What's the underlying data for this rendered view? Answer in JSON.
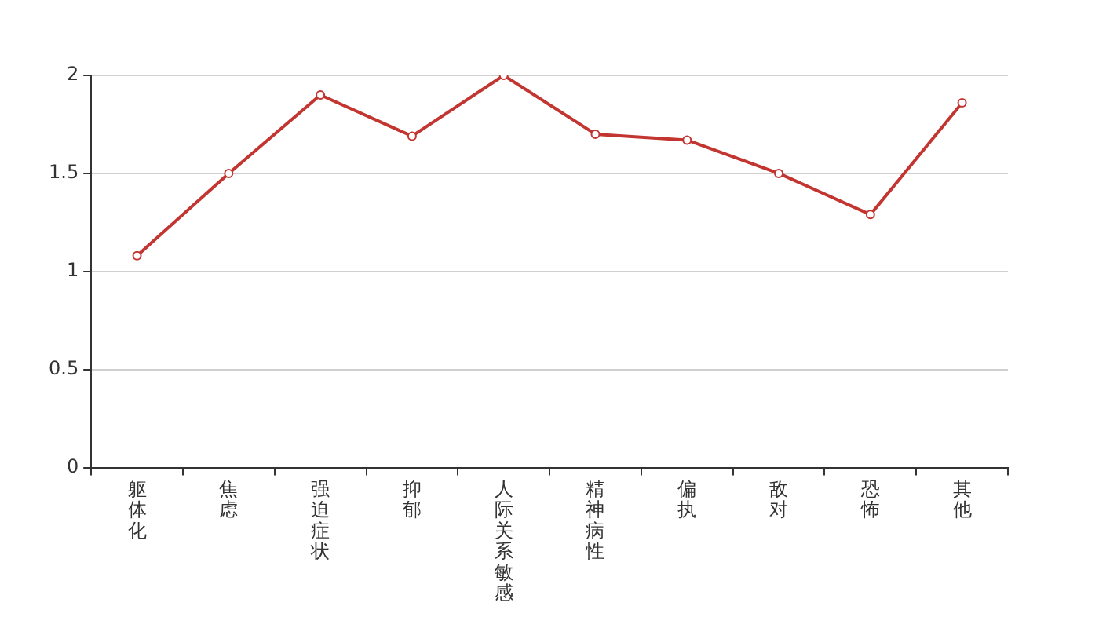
{
  "chart_data": {
    "type": "line",
    "categories": [
      "躯体化",
      "焦虑",
      "强迫症状",
      "抑郁",
      "人际关系敏感",
      "精神病性",
      "偏执",
      "敌对",
      "恐怖",
      "其他"
    ],
    "series": [
      {
        "color": "#c23531",
        "values": [
          1.08,
          1.5,
          1.9,
          1.69,
          2.0,
          1.7,
          1.67,
          1.5,
          1.29,
          1.86
        ]
      }
    ],
    "ylim": [
      0,
      2
    ],
    "yticks": [
      0,
      0.5,
      1,
      1.5,
      2
    ],
    "grid": "y",
    "legend": false,
    "marker": "circle",
    "line_style": "solid"
  }
}
